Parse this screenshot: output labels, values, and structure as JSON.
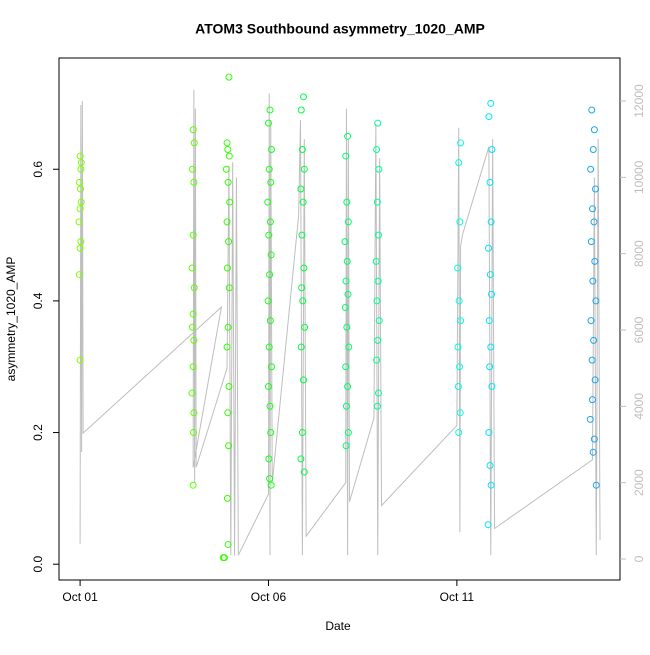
{
  "chart_data": {
    "type": "scatter",
    "title": "ATOM3 Southbound asymmetry_1020_AMP",
    "x_label": "Date",
    "y_label": "asymmetry_1020_AMP",
    "xlim": [
      -0.56,
      14.33
    ],
    "xticks": [
      {
        "value": 0,
        "label": "Oct 01"
      },
      {
        "value": 5,
        "label": "Oct 06"
      },
      {
        "value": 10,
        "label": "Oct 11"
      }
    ],
    "ylim": [
      -0.024,
      0.769
    ],
    "yticks": [
      {
        "value": 0,
        "label": "0.0"
      },
      0.2,
      0.4,
      0.6
    ],
    "y2lim": [
      -550,
      13127
    ],
    "y2ticks": [
      0,
      2000,
      4000,
      6000,
      8000,
      10000,
      12000
    ],
    "series": [
      {
        "color": "#7fff00",
        "x": [
          0,
          0.02,
          -0.02,
          0.03,
          0,
          -0.03,
          0.02,
          0,
          -0.02,
          0,
          0.03,
          0.01
        ],
        "values": [
          0.62,
          0.6,
          0.58,
          0.55,
          0.54,
          0.52,
          0.49,
          0.48,
          0.44,
          0.31,
          0.61,
          0.57
        ]
      },
      {
        "color": "#5cff00",
        "x": [
          3,
          3.03,
          2.98,
          3.02,
          3,
          2.97,
          3.03,
          3,
          2.98,
          3.02,
          3,
          2.97,
          3.02,
          3,
          3.01
        ],
        "values": [
          0.66,
          0.64,
          0.6,
          0.58,
          0.5,
          0.45,
          0.42,
          0.38,
          0.36,
          0.34,
          0.3,
          0.26,
          0.23,
          0.12,
          0.2
        ]
      },
      {
        "color": "#33ff00",
        "x": [
          3.95,
          3.9,
          3.92,
          3.96,
          3.88,
          3.93,
          3.97,
          3.9,
          3.94,
          3.91,
          3.96,
          3.93,
          3.9,
          3.95,
          3.92,
          3.94,
          3.91,
          3.93,
          3.8,
          3.83
        ],
        "values": [
          0.74,
          0.64,
          0.63,
          0.62,
          0.6,
          0.58,
          0.55,
          0.52,
          0.49,
          0.45,
          0.42,
          0.36,
          0.33,
          0.27,
          0.23,
          0.18,
          0.1,
          0.03,
          0.01,
          0.01
        ]
      },
      {
        "color": "#1aff1a",
        "x": [
          5.04,
          5,
          5.08,
          5.02,
          5.06,
          4.98,
          5.05,
          5.01,
          5.07,
          5.03,
          4.99,
          5.05,
          5.02,
          5.08,
          5,
          5.04,
          5.06,
          5.01,
          5.03,
          5.07
        ],
        "values": [
          0.69,
          0.67,
          0.63,
          0.6,
          0.58,
          0.55,
          0.52,
          0.5,
          0.47,
          0.44,
          0.4,
          0.37,
          0.33,
          0.3,
          0.27,
          0.24,
          0.2,
          0.16,
          0.13,
          0.12
        ]
      },
      {
        "color": "#00ff40",
        "x": [
          5.93,
          5.87,
          5.9,
          5.95,
          5.86,
          5.92,
          5.89,
          5.94,
          5.88,
          5.91,
          5.96,
          5.87,
          5.93,
          5.9,
          5.86,
          5.95
        ],
        "values": [
          0.71,
          0.69,
          0.63,
          0.6,
          0.57,
          0.55,
          0.5,
          0.45,
          0.42,
          0.4,
          0.36,
          0.33,
          0.28,
          0.2,
          0.16,
          0.14
        ]
      },
      {
        "color": "#00ff6a",
        "x": [
          7.1,
          7.05,
          7.08,
          7.12,
          7.03,
          7.09,
          7.06,
          7.11,
          7.04,
          7.08,
          7.13,
          7.05,
          7.1,
          7.07,
          7.12,
          7.06
        ],
        "values": [
          0.65,
          0.62,
          0.55,
          0.52,
          0.49,
          0.46,
          0.43,
          0.41,
          0.39,
          0.36,
          0.33,
          0.3,
          0.27,
          0.24,
          0.2,
          0.18
        ]
      },
      {
        "color": "#00ff95",
        "x": [
          7.9,
          7.87,
          7.93,
          7.89,
          7.92,
          7.86,
          7.91,
          7.88,
          7.94,
          7.9,
          7.87,
          7.92,
          7.89
        ],
        "values": [
          0.67,
          0.63,
          0.6,
          0.55,
          0.5,
          0.46,
          0.43,
          0.4,
          0.37,
          0.34,
          0.31,
          0.26,
          0.24
        ]
      },
      {
        "color": "#00ffe0",
        "x": [
          10.1,
          10.05,
          10.08,
          10.02,
          10.06,
          10.1,
          10.03,
          10.07,
          10.04,
          10.09,
          10.05
        ],
        "values": [
          0.64,
          0.61,
          0.52,
          0.45,
          0.4,
          0.37,
          0.33,
          0.3,
          0.27,
          0.23,
          0.2
        ]
      },
      {
        "color": "#00e5ff",
        "x": [
          10.9,
          10.85,
          10.93,
          10.88,
          10.91,
          10.84,
          10.89,
          10.92,
          10.86,
          10.9,
          10.87,
          10.93,
          10.85,
          10.88,
          10.91,
          10.83
        ],
        "values": [
          0.7,
          0.68,
          0.63,
          0.58,
          0.52,
          0.48,
          0.44,
          0.41,
          0.37,
          0.33,
          0.3,
          0.27,
          0.2,
          0.15,
          0.12,
          0.06
        ]
      },
      {
        "color": "#1aa8f0",
        "x": [
          13.58,
          13.65,
          13.62,
          13.55,
          13.68,
          13.6,
          13.64,
          13.57,
          13.66,
          13.61,
          13.69,
          13.56,
          13.63,
          13.59,
          13.67,
          13.6,
          13.54,
          13.65,
          13.62,
          13.7
        ],
        "values": [
          0.69,
          0.66,
          0.63,
          0.6,
          0.57,
          0.54,
          0.52,
          0.49,
          0.46,
          0.43,
          0.4,
          0.37,
          0.34,
          0.31,
          0.28,
          0.25,
          0.22,
          0.19,
          0.17,
          0.12
        ]
      },
      {
        "color": "#bebebe",
        "axis": "y2",
        "kind": "line",
        "x": [
          0,
          0.02,
          0.04,
          0.06,
          0.08,
          3.75,
          3,
          3.02,
          3.04,
          3.06,
          3.08,
          3.9,
          3.95,
          4,
          4.05,
          4.1,
          4.15,
          4.2,
          5,
          5.02,
          5.04,
          5.06,
          5.1,
          5.8,
          5.85,
          5.9,
          5.95,
          6,
          7.05,
          7.07,
          7.1,
          7.12,
          7.15,
          7.8,
          7.85,
          7.9,
          7.95,
          8,
          10,
          10.05,
          10.08,
          10.1,
          10.15,
          10.85,
          10.9,
          10.95,
          11,
          13.6,
          13.65,
          13.7,
          13.75,
          13.8
        ],
        "values": [
          400,
          11900,
          2800,
          12000,
          3300,
          6600,
          2400,
          12300,
          2000,
          11800,
          2400,
          5000,
          10300,
          100,
          10400,
          100,
          10000,
          100,
          1700,
          12200,
          100,
          11500,
          2000,
          9000,
          11500,
          100,
          11000,
          600,
          2000,
          11800,
          100,
          11000,
          1500,
          3700,
          11400,
          100,
          10500,
          1400,
          3500,
          11300,
          700,
          8200,
          8500,
          10800,
          100,
          11000,
          800,
          2600,
          10000,
          100,
          11000,
          500
        ]
      }
    ]
  }
}
